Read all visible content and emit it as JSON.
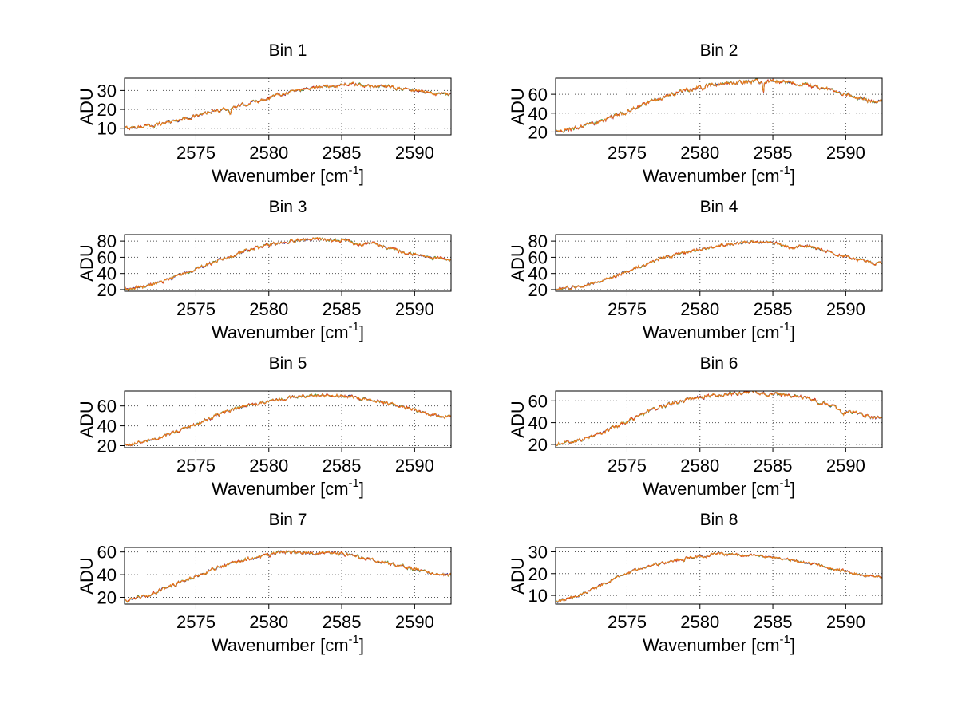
{
  "figure": {
    "background": "#ffffff",
    "text_color": "#000000",
    "axis_color": "#000000",
    "grid_color": "#555555"
  },
  "chart_data": {
    "type": "line",
    "layout": {
      "rows": 4,
      "cols": 2,
      "grid": "dotted",
      "legend": "none"
    },
    "ylabel": "ADU",
    "xlabel_parts": {
      "pre": "Wavenumber [cm",
      "sup": "-1",
      "post": "]"
    },
    "xlim": [
      2570.1,
      2592.5
    ],
    "xticks": [
      2575,
      2580,
      2585,
      2590
    ],
    "series_colors": [
      "#2b2b9e",
      "#3f9e3f",
      "#d62d1a",
      "#e8851f"
    ],
    "subplots": [
      {
        "title": "Bin 1",
        "yticks": [
          10,
          20,
          30
        ],
        "ylim": [
          6.5,
          36.5
        ],
        "noise_amp": 0.7,
        "dips": [
          {
            "x": 2577.35,
            "depth": 3.5,
            "w": 0.07
          }
        ],
        "envelope": [
          [
            2570.1,
            10
          ],
          [
            2572,
            11.5
          ],
          [
            2573,
            13
          ],
          [
            2574,
            14.8
          ],
          [
            2575,
            16.5
          ],
          [
            2576,
            18.5
          ],
          [
            2577,
            20
          ],
          [
            2577.8,
            21.5
          ],
          [
            2578.5,
            23
          ],
          [
            2579.5,
            25
          ],
          [
            2580.5,
            27.5
          ],
          [
            2581.5,
            29.5
          ],
          [
            2582.5,
            31
          ],
          [
            2583.5,
            32
          ],
          [
            2584.5,
            32.5
          ],
          [
            2585.5,
            33.5
          ],
          [
            2586.5,
            32.5
          ],
          [
            2587.5,
            32.5
          ],
          [
            2588.5,
            31.5
          ],
          [
            2589.5,
            30.5
          ],
          [
            2590.5,
            29.5
          ],
          [
            2591.5,
            28.5
          ],
          [
            2592.5,
            28
          ]
        ]
      },
      {
        "title": "Bin 2",
        "yticks": [
          20,
          40,
          60
        ],
        "ylim": [
          17,
          77
        ],
        "noise_amp": 1.6,
        "dips": [
          {
            "x": 2584.35,
            "depth": 10,
            "w": 0.05
          },
          {
            "x": 2580.15,
            "depth": 3,
            "w": 0.04
          }
        ],
        "envelope": [
          [
            2570.1,
            21
          ],
          [
            2571.5,
            24
          ],
          [
            2572.5,
            28
          ],
          [
            2573.5,
            33
          ],
          [
            2574.5,
            39
          ],
          [
            2575.5,
            45
          ],
          [
            2576.5,
            51
          ],
          [
            2577.5,
            57
          ],
          [
            2578.5,
            62
          ],
          [
            2579.5,
            66
          ],
          [
            2580.5,
            69
          ],
          [
            2581.5,
            71
          ],
          [
            2582.5,
            72.5
          ],
          [
            2583.5,
            73.5
          ],
          [
            2584.5,
            73.5
          ],
          [
            2585.5,
            74
          ],
          [
            2586.5,
            72
          ],
          [
            2587.5,
            70
          ],
          [
            2588.5,
            66
          ],
          [
            2589.5,
            62
          ],
          [
            2590.5,
            58
          ],
          [
            2591.5,
            54
          ],
          [
            2592.1,
            52
          ],
          [
            2592.5,
            54
          ]
        ]
      },
      {
        "title": "Bin 3",
        "yticks": [
          20,
          40,
          60,
          80
        ],
        "ylim": [
          18,
          88
        ],
        "noise_amp": 1.6,
        "dips": [],
        "envelope": [
          [
            2570.1,
            20
          ],
          [
            2571.5,
            24
          ],
          [
            2572.5,
            29
          ],
          [
            2573.5,
            35
          ],
          [
            2574.5,
            42
          ],
          [
            2575.5,
            49
          ],
          [
            2576.5,
            56
          ],
          [
            2577.5,
            62
          ],
          [
            2578.5,
            68
          ],
          [
            2579.5,
            73
          ],
          [
            2580.5,
            77
          ],
          [
            2581.5,
            80
          ],
          [
            2582.5,
            81.5
          ],
          [
            2583.5,
            82
          ],
          [
            2584.5,
            81
          ],
          [
            2585.5,
            80
          ],
          [
            2586.3,
            74
          ],
          [
            2587.2,
            78
          ],
          [
            2588,
            73
          ],
          [
            2589,
            68
          ],
          [
            2590,
            64
          ],
          [
            2591,
            60
          ],
          [
            2592.5,
            56
          ]
        ]
      },
      {
        "title": "Bin 4",
        "yticks": [
          20,
          40,
          60,
          80
        ],
        "ylim": [
          18,
          88
        ],
        "noise_amp": 1.5,
        "dips": [],
        "envelope": [
          [
            2570.1,
            21
          ],
          [
            2571.5,
            23.5
          ],
          [
            2572.5,
            27
          ],
          [
            2573.5,
            32
          ],
          [
            2574.5,
            39
          ],
          [
            2575.5,
            46
          ],
          [
            2576.5,
            53
          ],
          [
            2577.5,
            59
          ],
          [
            2578.5,
            64
          ],
          [
            2579.5,
            68
          ],
          [
            2580.5,
            72
          ],
          [
            2581.5,
            75
          ],
          [
            2582.5,
            77
          ],
          [
            2583.5,
            79.5
          ],
          [
            2584.5,
            78
          ],
          [
            2585.5,
            76.5
          ],
          [
            2586.3,
            70
          ],
          [
            2587,
            75
          ],
          [
            2587.8,
            72
          ],
          [
            2588.8,
            67
          ],
          [
            2589.8,
            62
          ],
          [
            2590.8,
            57
          ],
          [
            2591.8,
            53
          ],
          [
            2592.5,
            53
          ]
        ]
      },
      {
        "title": "Bin 5",
        "yticks": [
          20,
          40,
          60
        ],
        "ylim": [
          18,
          75
        ],
        "noise_amp": 1.3,
        "dips": [],
        "envelope": [
          [
            2570.1,
            21
          ],
          [
            2571.5,
            24
          ],
          [
            2572.5,
            28
          ],
          [
            2573.5,
            33
          ],
          [
            2574.5,
            39
          ],
          [
            2575.5,
            45
          ],
          [
            2576.5,
            51
          ],
          [
            2577.5,
            56
          ],
          [
            2578.5,
            60
          ],
          [
            2579.5,
            63
          ],
          [
            2580.5,
            66
          ],
          [
            2581.5,
            68.5
          ],
          [
            2582.5,
            70
          ],
          [
            2583.5,
            70.5
          ],
          [
            2584.5,
            70
          ],
          [
            2585.5,
            69.5
          ],
          [
            2586.5,
            67
          ],
          [
            2587.5,
            64.5
          ],
          [
            2588.5,
            61.5
          ],
          [
            2589.5,
            58
          ],
          [
            2590.5,
            54
          ],
          [
            2591.5,
            50
          ],
          [
            2592.1,
            48.5
          ],
          [
            2592.5,
            49.5
          ]
        ]
      },
      {
        "title": "Bin 6",
        "yticks": [
          20,
          40,
          60
        ],
        "ylim": [
          17,
          69
        ],
        "noise_amp": 1.3,
        "dips": [],
        "envelope": [
          [
            2570.1,
            20
          ],
          [
            2571.5,
            23
          ],
          [
            2572.5,
            27
          ],
          [
            2573.5,
            32
          ],
          [
            2574.5,
            38
          ],
          [
            2575.5,
            44
          ],
          [
            2576.5,
            50
          ],
          [
            2577.5,
            55
          ],
          [
            2578.5,
            59
          ],
          [
            2579.5,
            62
          ],
          [
            2580.5,
            64.5
          ],
          [
            2581.5,
            66
          ],
          [
            2582.5,
            66.5
          ],
          [
            2583.5,
            68
          ],
          [
            2584.5,
            66.5
          ],
          [
            2585.5,
            66
          ],
          [
            2586.5,
            64
          ],
          [
            2587.5,
            61.5
          ],
          [
            2588.3,
            58.5
          ],
          [
            2589.2,
            55
          ],
          [
            2589.8,
            47.5
          ],
          [
            2590.3,
            51
          ],
          [
            2591,
            47.5
          ],
          [
            2591.8,
            45
          ],
          [
            2592.5,
            44
          ]
        ]
      },
      {
        "title": "Bin 7",
        "yticks": [
          20,
          40,
          60
        ],
        "ylim": [
          14,
          64
        ],
        "noise_amp": 1.2,
        "dips": [],
        "envelope": [
          [
            2570.1,
            17
          ],
          [
            2571.5,
            21
          ],
          [
            2572.5,
            26
          ],
          [
            2573.5,
            31
          ],
          [
            2574.5,
            36
          ],
          [
            2575.5,
            41
          ],
          [
            2576.5,
            46
          ],
          [
            2577.5,
            50
          ],
          [
            2578.5,
            53.5
          ],
          [
            2579.5,
            56
          ],
          [
            2580.5,
            58.5
          ],
          [
            2581.3,
            60.5
          ],
          [
            2582,
            58.5
          ],
          [
            2583,
            59
          ],
          [
            2584,
            59.5
          ],
          [
            2585,
            58.5
          ],
          [
            2586,
            56
          ],
          [
            2587,
            53.5
          ],
          [
            2588,
            51
          ],
          [
            2589,
            48
          ],
          [
            2590,
            45
          ],
          [
            2591,
            41.5
          ],
          [
            2592,
            39.5
          ],
          [
            2592.5,
            39.5
          ]
        ]
      },
      {
        "title": "Bin 8",
        "yticks": [
          10,
          20,
          30
        ],
        "ylim": [
          6,
          32
        ],
        "noise_amp": 0.5,
        "dips": [
          {
            "x": 2578.9,
            "depth": 2,
            "w": 0.05
          }
        ],
        "envelope": [
          [
            2570.1,
            7
          ],
          [
            2571.5,
            9.5
          ],
          [
            2572.5,
            12.5
          ],
          [
            2573.5,
            15.5
          ],
          [
            2574.5,
            18.5
          ],
          [
            2575.5,
            21.5
          ],
          [
            2576.5,
            23.5
          ],
          [
            2577.5,
            25
          ],
          [
            2578.5,
            26.5
          ],
          [
            2579.5,
            27.5
          ],
          [
            2580.5,
            28
          ],
          [
            2581.2,
            29.5
          ],
          [
            2582,
            28.5
          ],
          [
            2583,
            28.5
          ],
          [
            2584,
            28
          ],
          [
            2585,
            27.5
          ],
          [
            2586,
            26.5
          ],
          [
            2587,
            25.5
          ],
          [
            2588,
            24
          ],
          [
            2589,
            22.5
          ],
          [
            2590,
            21
          ],
          [
            2591,
            19.5
          ],
          [
            2592.5,
            18.5
          ]
        ]
      }
    ]
  }
}
